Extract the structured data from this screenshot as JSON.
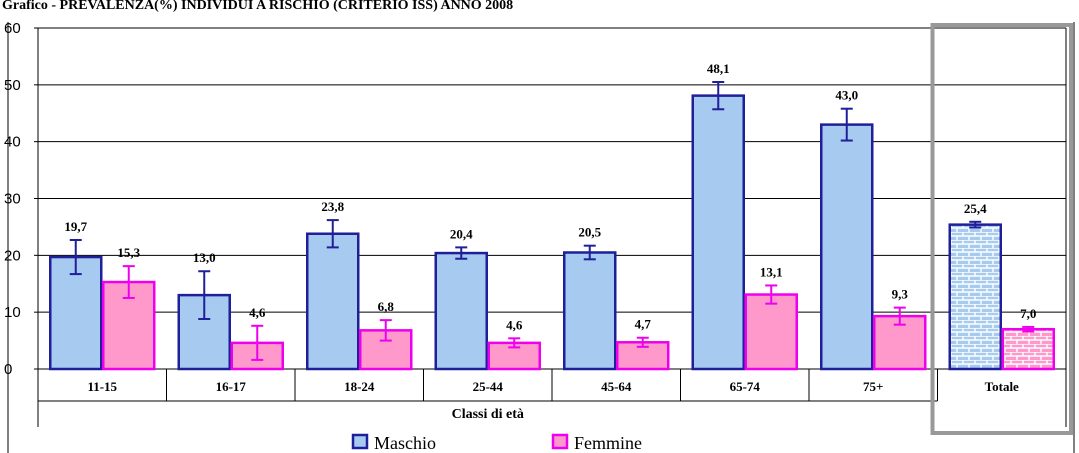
{
  "chart_data": {
    "type": "bar",
    "title": "Grafico - PREVALENZA(%) INDIVIDUI A RISCHIO (CRITERIO ISS) ANNO 2008",
    "xlabel": "Classi di età",
    "ylabel": "",
    "ylim": [
      0,
      60
    ],
    "yticks": [
      0,
      10,
      20,
      30,
      40,
      50,
      60
    ],
    "grid": true,
    "legend_position": "bottom",
    "categories": [
      "11-15",
      "16-17",
      "18-24",
      "25-44",
      "45-64",
      "65-74",
      "75+",
      "Totale"
    ],
    "highlighted_category": "Totale",
    "series": [
      {
        "name": "Maschio",
        "color": "#a6caf0",
        "edge": "#1f1f9a",
        "values": [
          19.7,
          13.0,
          23.8,
          20.4,
          20.5,
          48.1,
          43.0,
          25.4
        ],
        "labels": [
          "19,7",
          "13,0",
          "23,8",
          "20,4",
          "20,5",
          "48,1",
          "43,0",
          "25,4"
        ],
        "error": [
          3.0,
          4.2,
          2.4,
          1.0,
          1.2,
          2.4,
          2.8,
          0.5
        ]
      },
      {
        "name": "Femmine",
        "color": "#ff99cc",
        "edge": "#ee00ee",
        "values": [
          15.3,
          4.6,
          6.8,
          4.6,
          4.7,
          13.1,
          9.3,
          7.0
        ],
        "labels": [
          "15,3",
          "4,6",
          "6,8",
          "4,6",
          "4,7",
          "13,1",
          "9,3",
          "7,0"
        ],
        "error": [
          2.8,
          3.0,
          1.8,
          0.8,
          0.8,
          1.6,
          1.5,
          0.4
        ]
      }
    ]
  }
}
